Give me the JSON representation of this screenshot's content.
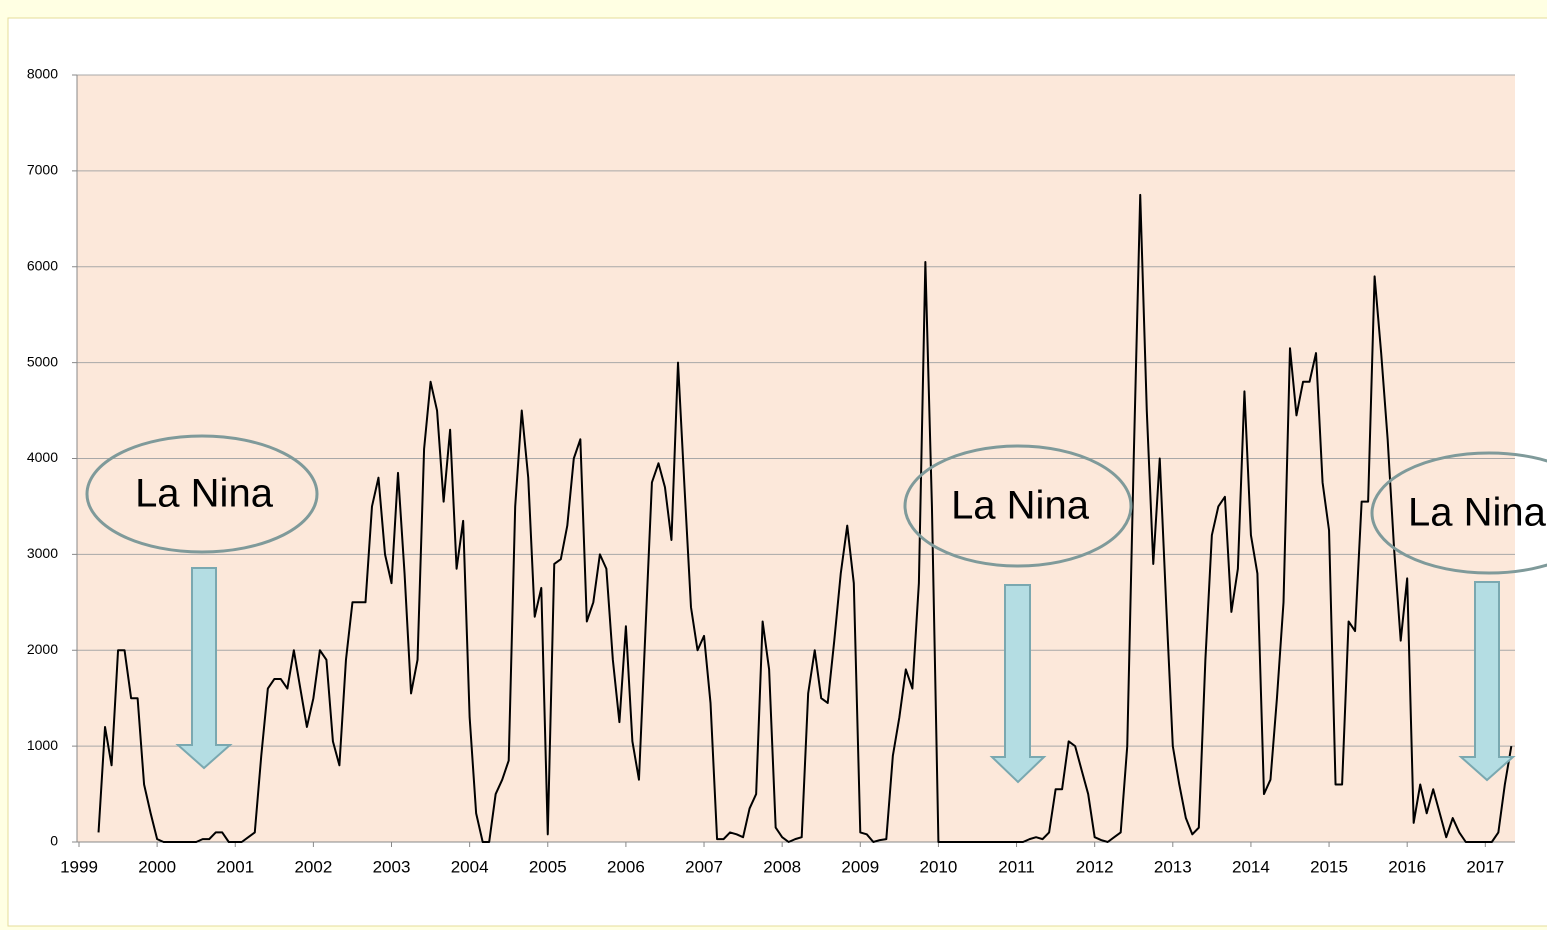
{
  "chart_data": {
    "type": "line",
    "x": [
      1999.25,
      1999.333,
      1999.417,
      1999.5,
      1999.583,
      1999.667,
      1999.75,
      1999.833,
      1999.917,
      2000,
      2000.083,
      2000.167,
      2000.25,
      2000.333,
      2000.417,
      2000.5,
      2000.583,
      2000.667,
      2000.75,
      2000.833,
      2000.917,
      2001,
      2001.083,
      2001.167,
      2001.25,
      2001.333,
      2001.417,
      2001.5,
      2001.583,
      2001.667,
      2001.75,
      2001.833,
      2001.917,
      2002,
      2002.083,
      2002.167,
      2002.25,
      2002.333,
      2002.417,
      2002.5,
      2002.583,
      2002.667,
      2002.75,
      2002.833,
      2002.917,
      2003,
      2003.083,
      2003.167,
      2003.25,
      2003.333,
      2003.417,
      2003.5,
      2003.583,
      2003.667,
      2003.75,
      2003.833,
      2003.917,
      2004,
      2004.083,
      2004.167,
      2004.25,
      2004.333,
      2004.417,
      2004.5,
      2004.583,
      2004.667,
      2004.75,
      2004.833,
      2004.917,
      2005,
      2005.083,
      2005.167,
      2005.25,
      2005.333,
      2005.417,
      2005.5,
      2005.583,
      2005.667,
      2005.75,
      2005.833,
      2005.917,
      2006,
      2006.083,
      2006.167,
      2006.25,
      2006.333,
      2006.417,
      2006.5,
      2006.583,
      2006.667,
      2006.75,
      2006.833,
      2006.917,
      2007,
      2007.083,
      2007.167,
      2007.25,
      2007.333,
      2007.417,
      2007.5,
      2007.583,
      2007.667,
      2007.75,
      2007.833,
      2007.917,
      2008,
      2008.083,
      2008.167,
      2008.25,
      2008.333,
      2008.417,
      2008.5,
      2008.583,
      2008.667,
      2008.75,
      2008.833,
      2008.917,
      2009,
      2009.083,
      2009.167,
      2009.25,
      2009.333,
      2009.417,
      2009.5,
      2009.583,
      2009.667,
      2009.75,
      2009.833,
      2009.917,
      2010,
      2010.083,
      2010.167,
      2010.25,
      2010.333,
      2010.417,
      2010.5,
      2010.583,
      2010.667,
      2010.75,
      2010.833,
      2010.917,
      2011,
      2011.083,
      2011.167,
      2011.25,
      2011.333,
      2011.417,
      2011.5,
      2011.583,
      2011.667,
      2011.75,
      2011.833,
      2011.917,
      2012,
      2012.083,
      2012.167,
      2012.25,
      2012.333,
      2012.417,
      2012.5,
      2012.583,
      2012.667,
      2012.75,
      2012.833,
      2012.917,
      2013,
      2013.083,
      2013.167,
      2013.25,
      2013.333,
      2013.417,
      2013.5,
      2013.583,
      2013.667,
      2013.75,
      2013.833,
      2013.917,
      2014,
      2014.083,
      2014.167,
      2014.25,
      2014.333,
      2014.417,
      2014.5,
      2014.583,
      2014.667,
      2014.75,
      2014.833,
      2014.917,
      2015,
      2015.083,
      2015.167,
      2015.25,
      2015.333,
      2015.417,
      2015.5,
      2015.583,
      2015.667,
      2015.75,
      2015.833,
      2015.917,
      2016,
      2016.083,
      2016.167,
      2016.25,
      2016.333,
      2016.417,
      2016.5,
      2016.583,
      2016.667,
      2016.75,
      2016.833,
      2016.917,
      2017,
      2017.083,
      2017.167,
      2017.25,
      2017.333
    ],
    "values": [
      100,
      1200,
      800,
      2000,
      2000,
      1500,
      1500,
      600,
      300,
      30,
      0,
      0,
      0,
      0,
      0,
      0,
      30,
      30,
      100,
      100,
      0,
      0,
      0,
      50,
      100,
      900,
      1600,
      1700,
      1700,
      1600,
      2000,
      1600,
      1200,
      1500,
      2000,
      1900,
      1050,
      800,
      1900,
      2500,
      2500,
      2500,
      3500,
      3800,
      3000,
      2700,
      3850,
      2800,
      1550,
      1900,
      4100,
      4800,
      4500,
      3550,
      4300,
      2850,
      3350,
      1300,
      300,
      0,
      0,
      500,
      650,
      850,
      3500,
      4500,
      3800,
      2350,
      2650,
      80,
      2900,
      2950,
      3300,
      4000,
      4200,
      2300,
      2500,
      3000,
      2850,
      1900,
      1250,
      2250,
      1050,
      650,
      2200,
      3750,
      3950,
      3700,
      3150,
      5000,
      3700,
      2450,
      2000,
      2150,
      1450,
      30,
      30,
      100,
      80,
      50,
      350,
      500,
      2300,
      1800,
      150,
      50,
      0,
      30,
      50,
      1550,
      2000,
      1500,
      1450,
      2100,
      2800,
      3300,
      2700,
      100,
      80,
      0,
      20,
      30,
      900,
      1300,
      1800,
      1600,
      2700,
      6050,
      3500,
      0,
      0,
      0,
      0,
      0,
      0,
      0,
      0,
      0,
      0,
      0,
      0,
      0,
      0,
      30,
      50,
      30,
      100,
      550,
      550,
      1050,
      1000,
      750,
      500,
      50,
      20,
      0,
      50,
      100,
      1000,
      4000,
      6750,
      4500,
      2900,
      4000,
      2450,
      1000,
      600,
      250,
      80,
      150,
      1900,
      3200,
      3500,
      3600,
      2400,
      2850,
      4700,
      3200,
      2800,
      500,
      650,
      1500,
      2500,
      5150,
      4450,
      4800,
      4800,
      5100,
      3750,
      3250,
      600,
      600,
      2300,
      2200,
      3550,
      3550,
      5900,
      5100,
      4200,
      3050,
      2100,
      2750,
      200,
      600,
      300,
      550,
      300,
      50,
      250,
      100,
      0,
      0,
      0,
      0,
      0,
      100,
      600,
      1000
    ],
    "color": "#000000",
    "xlim": [
      1999,
      2017.38
    ],
    "xticks": [
      1999,
      2000,
      2001,
      2002,
      2003,
      2004,
      2005,
      2006,
      2007,
      2008,
      2009,
      2010,
      2011,
      2012,
      2013,
      2014,
      2015,
      2016,
      2017
    ],
    "ylim": [
      0,
      8000
    ],
    "yticks": [
      0,
      1000,
      2000,
      3000,
      4000,
      5000,
      6000,
      7000,
      8000
    ],
    "grid": true,
    "annotations": [
      "La Nina",
      "La Nina",
      "La Nina"
    ]
  }
}
